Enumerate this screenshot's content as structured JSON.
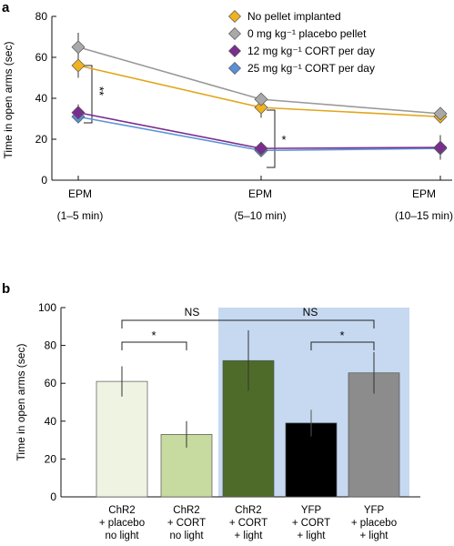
{
  "figure_panels": [
    "a",
    "b"
  ],
  "chart_data": [
    {
      "panel": "a",
      "type": "line",
      "categories": [
        [
          "EPM",
          "(1–5 min)"
        ],
        [
          "EPM",
          "(5–10 min)"
        ],
        [
          "EPM",
          "(10–15 min)"
        ]
      ],
      "ylabel": "Time in open arms (sec)",
      "ylim": [
        0,
        80
      ],
      "yticks": [
        "0",
        "20",
        "40",
        "60",
        "80"
      ],
      "grid": false,
      "legend_position": "top-right",
      "series": [
        {
          "name": "No pellet implanted",
          "color": "#f0b21e",
          "line_color": "#e3a51a",
          "values": [
            56,
            35.5,
            31
          ],
          "err": [
            6,
            5,
            3
          ]
        },
        {
          "name": "0 mg kg⁻¹ placebo pellet",
          "color": "#a9a9a9",
          "line_color": "#9a9a9a",
          "values": [
            65,
            39.5,
            32.5
          ],
          "err": [
            7,
            3,
            3
          ]
        },
        {
          "name": "12 mg kg⁻¹ CORT per day",
          "color": "#7b2d8e",
          "line_color": "#7b2d8e",
          "values": [
            33,
            15.5,
            16
          ],
          "err": [
            4,
            3,
            6
          ]
        },
        {
          "name": "25 mg kg⁻¹ CORT per day",
          "color": "#5b8fd6",
          "line_color": "#5b95d8",
          "values": [
            31,
            14.5,
            15.5
          ],
          "err": [
            2,
            2,
            3
          ]
        }
      ],
      "annotations": [
        "**",
        "*"
      ]
    },
    {
      "panel": "b",
      "type": "bar",
      "categories": [
        [
          "ChR2",
          "+ placebo",
          "no light"
        ],
        [
          "ChR2",
          "+ CORT",
          "no light"
        ],
        [
          "ChR2",
          "+ CORT",
          "+ light"
        ],
        [
          "YFP",
          "+ CORT",
          "+ light"
        ],
        [
          "YFP",
          "+ placebo",
          "+ light"
        ]
      ],
      "values": [
        61,
        33,
        72,
        39,
        65.5
      ],
      "err": [
        8,
        7,
        16,
        7,
        11
      ],
      "colors": [
        "#eef3e2",
        "#c7dba0",
        "#4f6b2a",
        "#000000",
        "#8c8c8c"
      ],
      "highlight_color": "#c6d9f1",
      "ylabel": "Time in open arms (sec)",
      "ylim": [
        0,
        100
      ],
      "yticks": [
        "0",
        "20",
        "40",
        "60",
        "80",
        "100"
      ],
      "grid": false,
      "annotations": [
        "NS",
        "NS",
        "*",
        "*"
      ]
    }
  ]
}
